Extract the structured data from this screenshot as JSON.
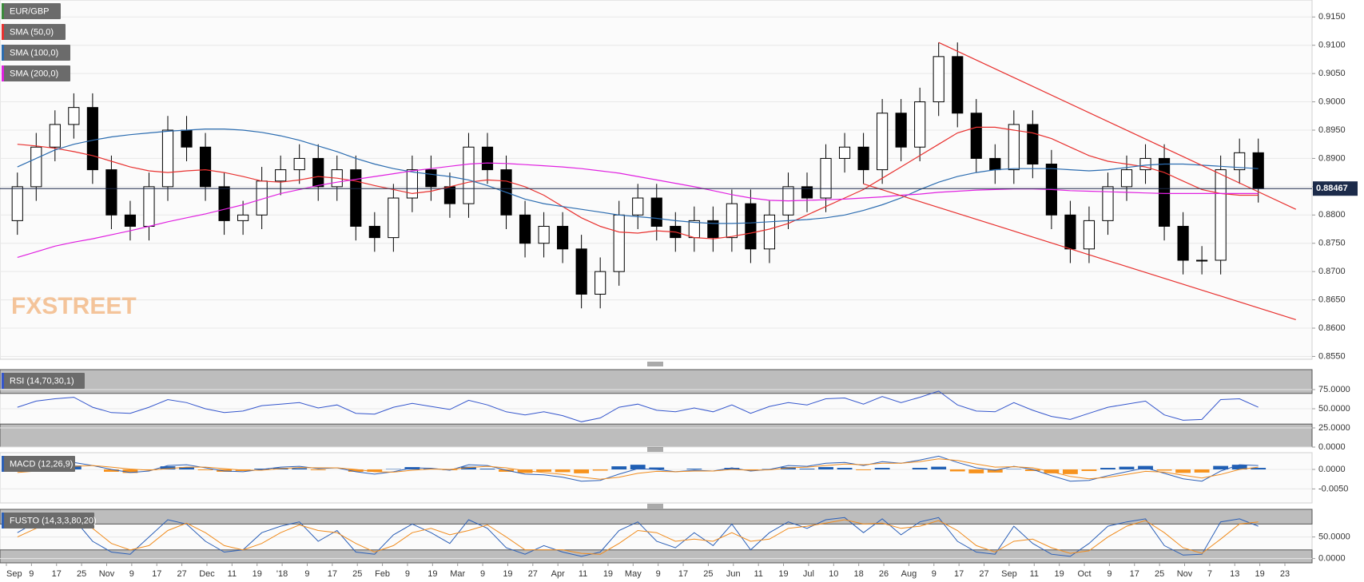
{
  "chart_data": [
    {
      "type": "candlestick",
      "name": "EUR/GBP",
      "color": "#3a8a3a",
      "watermark": "FXSTREET",
      "open": [
        0.879,
        0.885,
        0.892,
        0.896,
        0.899,
        0.888,
        0.88,
        0.878,
        0.885,
        0.895,
        0.892,
        0.885,
        0.879,
        0.88,
        0.886,
        0.888,
        0.89,
        0.885,
        0.888,
        0.878,
        0.876,
        0.883,
        0.888,
        0.885,
        0.882,
        0.892,
        0.888,
        0.88,
        0.875,
        0.878,
        0.874,
        0.866,
        0.87,
        0.88,
        0.883,
        0.878,
        0.876,
        0.879,
        0.876,
        0.882,
        0.874,
        0.88,
        0.885,
        0.883,
        0.89,
        0.892,
        0.888,
        0.898,
        0.892,
        0.9,
        0.908,
        0.898,
        0.89,
        0.888,
        0.896,
        0.889,
        0.88,
        0.874,
        0.879,
        0.885,
        0.888,
        0.89,
        0.878,
        0.872,
        0.872,
        0.888,
        0.891
      ],
      "high": [
        0.8875,
        0.8945,
        0.8985,
        0.9015,
        0.9015,
        0.8905,
        0.8825,
        0.8875,
        0.8975,
        0.8975,
        0.8945,
        0.8875,
        0.8825,
        0.8885,
        0.8905,
        0.8925,
        0.8925,
        0.8905,
        0.8905,
        0.8805,
        0.8855,
        0.8905,
        0.8905,
        0.8875,
        0.8945,
        0.8945,
        0.8905,
        0.8825,
        0.8805,
        0.8805,
        0.8765,
        0.8725,
        0.8825,
        0.8855,
        0.8855,
        0.8805,
        0.8815,
        0.8815,
        0.8845,
        0.8845,
        0.8825,
        0.8875,
        0.8875,
        0.8925,
        0.8945,
        0.8945,
        0.9005,
        0.9005,
        0.9025,
        0.9105,
        0.9105,
        0.9005,
        0.8925,
        0.8985,
        0.8985,
        0.8915,
        0.8825,
        0.8815,
        0.8875,
        0.8905,
        0.8925,
        0.8925,
        0.8805,
        0.8745,
        0.8905,
        0.8935,
        0.8935
      ],
      "low": [
        0.8765,
        0.8825,
        0.8895,
        0.8935,
        0.8855,
        0.8775,
        0.8755,
        0.8755,
        0.8825,
        0.8895,
        0.8825,
        0.8765,
        0.8765,
        0.8775,
        0.8835,
        0.8855,
        0.8825,
        0.8825,
        0.8755,
        0.8735,
        0.8735,
        0.8805,
        0.8825,
        0.8795,
        0.8795,
        0.8855,
        0.8775,
        0.8725,
        0.8725,
        0.8715,
        0.8635,
        0.8635,
        0.8675,
        0.8775,
        0.8755,
        0.8735,
        0.8735,
        0.8735,
        0.8735,
        0.8715,
        0.8715,
        0.8775,
        0.8805,
        0.8805,
        0.8875,
        0.8855,
        0.8855,
        0.8895,
        0.8895,
        0.8975,
        0.8955,
        0.8875,
        0.8855,
        0.8855,
        0.8865,
        0.8775,
        0.8715,
        0.8715,
        0.8765,
        0.8825,
        0.8855,
        0.8755,
        0.8695,
        0.8695,
        0.8695,
        0.8855,
        0.8822
      ],
      "close": [
        0.885,
        0.892,
        0.896,
        0.899,
        0.888,
        0.88,
        0.878,
        0.885,
        0.895,
        0.892,
        0.885,
        0.879,
        0.88,
        0.886,
        0.888,
        0.89,
        0.885,
        0.888,
        0.878,
        0.876,
        0.883,
        0.888,
        0.885,
        0.882,
        0.892,
        0.888,
        0.88,
        0.875,
        0.878,
        0.874,
        0.866,
        0.87,
        0.88,
        0.883,
        0.878,
        0.876,
        0.879,
        0.876,
        0.882,
        0.874,
        0.88,
        0.885,
        0.883,
        0.89,
        0.892,
        0.888,
        0.898,
        0.892,
        0.9,
        0.908,
        0.898,
        0.89,
        0.888,
        0.896,
        0.889,
        0.88,
        0.874,
        0.879,
        0.885,
        0.888,
        0.89,
        0.878,
        0.872,
        0.872,
        0.888,
        0.891,
        0.88467
      ],
      "series": [
        {
          "name": "SMA (50,0)",
          "color": "#e8312f",
          "values": [
            0.8925,
            0.8922,
            0.8918,
            0.8912,
            0.8905,
            0.8895,
            0.8885,
            0.8878,
            0.8875,
            0.8878,
            0.888,
            0.8875,
            0.8868,
            0.886,
            0.8858,
            0.8862,
            0.8868,
            0.8865,
            0.886,
            0.8852,
            0.8845,
            0.8838,
            0.8842,
            0.885,
            0.8858,
            0.8862,
            0.886,
            0.885,
            0.8835,
            0.8815,
            0.8795,
            0.878,
            0.877,
            0.8768,
            0.8772,
            0.877,
            0.876,
            0.8758,
            0.8762,
            0.8768,
            0.8775,
            0.8785,
            0.88,
            0.8815,
            0.883,
            0.8845,
            0.8865,
            0.8885,
            0.8905,
            0.8925,
            0.8945,
            0.8955,
            0.8955,
            0.895,
            0.8945,
            0.8935,
            0.892,
            0.8905,
            0.8895,
            0.889,
            0.8885,
            0.8875,
            0.886,
            0.8845,
            0.8838,
            0.8835,
            0.8835
          ]
        },
        {
          "name": "SMA (100,0)",
          "color": "#2b6cb0",
          "values": [
            0.8885,
            0.89,
            0.8915,
            0.8925,
            0.8932,
            0.8938,
            0.8942,
            0.8945,
            0.8948,
            0.895,
            0.8952,
            0.8952,
            0.895,
            0.8946,
            0.894,
            0.8932,
            0.8922,
            0.8912,
            0.89,
            0.889,
            0.8882,
            0.8876,
            0.8872,
            0.8868,
            0.8862,
            0.8852,
            0.884,
            0.8828,
            0.882,
            0.8815,
            0.881,
            0.8805,
            0.88,
            0.8797,
            0.8794,
            0.879,
            0.8787,
            0.8785,
            0.8785,
            0.8786,
            0.8788,
            0.879,
            0.8792,
            0.8795,
            0.88,
            0.8808,
            0.8818,
            0.883,
            0.8845,
            0.8858,
            0.8868,
            0.8875,
            0.888,
            0.8882,
            0.8882,
            0.8882,
            0.888,
            0.8878,
            0.888,
            0.8884,
            0.8888,
            0.889,
            0.889,
            0.8888,
            0.8886,
            0.8884,
            0.8882
          ]
        },
        {
          "name": "SMA (200,0)",
          "color": "#e020e0",
          "values": [
            0.8725,
            0.8735,
            0.8745,
            0.8752,
            0.8758,
            0.8765,
            0.8772,
            0.878,
            0.8788,
            0.8795,
            0.8802,
            0.881,
            0.8818,
            0.8828,
            0.8838,
            0.8845,
            0.8852,
            0.8858,
            0.8863,
            0.8868,
            0.8873,
            0.8878,
            0.8882,
            0.8886,
            0.889,
            0.8892,
            0.8891,
            0.8889,
            0.8887,
            0.8885,
            0.8882,
            0.8878,
            0.8874,
            0.8868,
            0.8862,
            0.8856,
            0.885,
            0.8843,
            0.8836,
            0.883,
            0.8826,
            0.8825,
            0.8826,
            0.8827,
            0.8828,
            0.883,
            0.8832,
            0.8835,
            0.8837,
            0.884,
            0.8842,
            0.8844,
            0.8845,
            0.8846,
            0.8846,
            0.8845,
            0.8843,
            0.8842,
            0.8841,
            0.884,
            0.8839,
            0.8838,
            0.8838,
            0.8838,
            0.8838,
            0.8838,
            0.8838
          ]
        }
      ],
      "trendlines": [
        {
          "color": "#e8312f",
          "x": [
            49,
            68
          ],
          "y": [
            0.9105,
            0.881
          ]
        },
        {
          "color": "#e8312f",
          "x": [
            45,
            68
          ],
          "y": [
            0.8855,
            0.8615
          ]
        }
      ],
      "last_price": 0.88467,
      "ylim": [
        0.8545,
        0.918
      ],
      "yticks": [
        {
          "value": 0.855,
          "label": "0.8550"
        },
        {
          "value": 0.86,
          "label": "0.8600"
        },
        {
          "value": 0.865,
          "label": "0.8650"
        },
        {
          "value": 0.87,
          "label": "0.8700"
        },
        {
          "value": 0.875,
          "label": "0.8750"
        },
        {
          "value": 0.88,
          "label": "0.8800"
        },
        {
          "value": 0.885,
          "label": "0.8850"
        },
        {
          "value": 0.89,
          "label": "0.8900"
        },
        {
          "value": 0.895,
          "label": "0.8950"
        },
        {
          "value": 0.9,
          "label": "0.9000"
        },
        {
          "value": 0.905,
          "label": "0.9050"
        },
        {
          "value": 0.91,
          "label": "0.9100"
        },
        {
          "value": 0.915,
          "label": "0.9150"
        }
      ],
      "grid": true
    },
    {
      "type": "line",
      "name": "RSI (14,70,30,1)",
      "overbought": 70,
      "oversold": 30,
      "series": [
        {
          "color": "#3355cc",
          "values": [
            52,
            60,
            63,
            65,
            52,
            45,
            44,
            52,
            62,
            58,
            50,
            45,
            47,
            54,
            56,
            58,
            51,
            55,
            44,
            43,
            52,
            57,
            53,
            49,
            61,
            55,
            46,
            42,
            46,
            41,
            33,
            38,
            52,
            56,
            48,
            46,
            51,
            46,
            55,
            44,
            53,
            58,
            55,
            63,
            64,
            56,
            66,
            58,
            65,
            73,
            55,
            47,
            46,
            58,
            48,
            40,
            36,
            44,
            52,
            56,
            60,
            42,
            35,
            36,
            62,
            63,
            52
          ]
        }
      ],
      "ylim": [
        0,
        101
      ],
      "yticks": [
        {
          "value": 75,
          "label": "75.0000"
        },
        {
          "value": 50,
          "label": "50.0000"
        },
        {
          "value": 25,
          "label": "25.0000"
        },
        {
          "value": 0,
          "label": "0.0000"
        }
      ]
    },
    {
      "type": "macd",
      "name": "MACD (12,26,9)",
      "histogram_colors": [
        "#1f5fb4",
        "#f7931e"
      ],
      "histogram": [
        0.0003,
        0.0009,
        0.001,
        0.001,
        0.0,
        -0.0006,
        -0.0009,
        -0.0002,
        0.0008,
        0.0006,
        -0.0002,
        -0.0006,
        -0.0004,
        0.0002,
        0.0004,
        0.0003,
        -0.0002,
        0.0,
        -0.0006,
        -0.0006,
        0.0001,
        0.0006,
        0.0002,
        -0.0002,
        0.0007,
        0.0002,
        -0.0006,
        -0.0009,
        -0.0006,
        -0.0007,
        -0.001,
        -0.0003,
        0.0008,
        0.0012,
        0.0005,
        0.0,
        0.0002,
        0.0,
        0.0004,
        -0.0002,
        0.0001,
        0.0006,
        0.0002,
        0.0006,
        0.0004,
        -0.0002,
        0.0004,
        0.0,
        0.0004,
        0.0007,
        -0.0005,
        -0.001,
        -0.0008,
        0.0001,
        -0.0004,
        -0.001,
        -0.0012,
        -0.0004,
        0.0004,
        0.0007,
        0.0009,
        -0.0003,
        -0.0009,
        -0.0008,
        0.0009,
        0.0012,
        0.0004
      ],
      "series": [
        {
          "color": "#2b5fb7",
          "values": [
            -0.0005,
            0.0005,
            0.0012,
            0.0018,
            0.001,
            0.0,
            -0.0008,
            -0.0004,
            0.001,
            0.0012,
            0.0004,
            -0.0004,
            -0.0006,
            0.0,
            0.0006,
            0.0008,
            0.0002,
            0.0004,
            -0.0006,
            -0.0012,
            -0.0006,
            0.0004,
            0.0003,
            -0.0002,
            0.0012,
            0.001,
            -0.0002,
            -0.0012,
            -0.0014,
            -0.002,
            -0.003,
            -0.0028,
            -0.0012,
            0.0002,
            0.0,
            -0.0006,
            -0.0002,
            -0.0004,
            0.0004,
            -0.0004,
            0.0,
            0.001,
            0.0008,
            0.0016,
            0.0018,
            0.001,
            0.002,
            0.0016,
            0.0024,
            0.0034,
            0.0018,
            0.0004,
            -0.0002,
            0.0008,
            0.0,
            -0.0016,
            -0.003,
            -0.0028,
            -0.0016,
            -0.0006,
            0.0004,
            -0.001,
            -0.0024,
            -0.003,
            -0.0004,
            0.0012,
            0.001
          ]
        },
        {
          "color": "#f08c1e",
          "values": [
            -0.0008,
            -0.0004,
            0.0002,
            0.0008,
            0.001,
            0.0006,
            0.0001,
            -0.0002,
            0.0002,
            0.0006,
            0.0006,
            0.0002,
            -0.0002,
            -0.0002,
            0.0002,
            0.0005,
            0.0004,
            0.0004,
            0.0,
            -0.0006,
            -0.0007,
            -0.0002,
            0.0001,
            0.0,
            0.0005,
            0.0008,
            0.0004,
            -0.0003,
            -0.0008,
            -0.0013,
            -0.002,
            -0.0025,
            -0.002,
            -0.001,
            -0.0005,
            -0.0006,
            -0.0004,
            -0.0004,
            0.0,
            -0.0002,
            -0.0001,
            0.0004,
            0.0006,
            0.001,
            0.0014,
            0.0012,
            0.0016,
            0.0016,
            0.002,
            0.0027,
            0.0023,
            0.0014,
            0.0006,
            0.0007,
            0.0004,
            -0.0006,
            -0.0018,
            -0.0024,
            -0.002,
            -0.0013,
            -0.0005,
            -0.0007,
            -0.0015,
            -0.0022,
            -0.0013,
            0.0,
            0.0006
          ]
        }
      ],
      "ylim": [
        -0.0086,
        0.0043
      ],
      "yticks": [
        {
          "value": 0,
          "label": "0.0000"
        },
        {
          "value": -0.005,
          "label": "-0.0050"
        }
      ]
    },
    {
      "type": "line",
      "name": "FUSTO (14,3,3,80,20)",
      "overbought": 80,
      "oversold": 20,
      "series": [
        {
          "color": "#2b5fb7",
          "values": [
            60,
            85,
            90,
            92,
            40,
            15,
            10,
            50,
            90,
            80,
            40,
            15,
            20,
            60,
            75,
            85,
            40,
            65,
            15,
            10,
            55,
            80,
            60,
            35,
            90,
            70,
            25,
            10,
            30,
            15,
            5,
            15,
            65,
            85,
            40,
            25,
            60,
            30,
            80,
            20,
            60,
            85,
            70,
            90,
            95,
            60,
            92,
            55,
            85,
            95,
            40,
            15,
            10,
            75,
            35,
            10,
            5,
            35,
            75,
            85,
            92,
            30,
            8,
            10,
            85,
            92,
            75
          ]
        },
        {
          "color": "#f08c1e",
          "values": [
            50,
            70,
            85,
            90,
            70,
            35,
            20,
            30,
            65,
            82,
            60,
            30,
            20,
            35,
            60,
            78,
            65,
            60,
            35,
            15,
            30,
            60,
            70,
            55,
            65,
            78,
            50,
            20,
            20,
            20,
            12,
            10,
            35,
            65,
            60,
            40,
            45,
            40,
            60,
            40,
            45,
            70,
            75,
            82,
            90,
            80,
            82,
            70,
            75,
            88,
            65,
            30,
            15,
            40,
            45,
            25,
            12,
            18,
            50,
            75,
            88,
            60,
            25,
            12,
            45,
            80,
            85
          ]
        }
      ],
      "ylim": [
        -10,
        114
      ],
      "yticks": [
        {
          "value": 50,
          "label": "50.0000"
        },
        {
          "value": 0,
          "label": "0.0000"
        }
      ],
      "xtick_labels": [
        "Sep",
        "9",
        "17",
        "25",
        "Nov",
        "9",
        "17",
        "27",
        "Dec",
        "11",
        "19",
        "'18",
        "9",
        "17",
        "25",
        "Feb",
        "9",
        "19",
        "Mar",
        "9",
        "19",
        "27",
        "Apr",
        "11",
        "19",
        "May",
        "9",
        "17",
        "25",
        "Jun",
        "11",
        "19",
        "Jul",
        "10",
        "18",
        "26",
        "Aug",
        "9",
        "17",
        "27",
        "Sep",
        "11",
        "19",
        "Oct",
        "9",
        "17",
        "25",
        "Nov",
        "7",
        "13",
        "19",
        "23"
      ]
    }
  ]
}
